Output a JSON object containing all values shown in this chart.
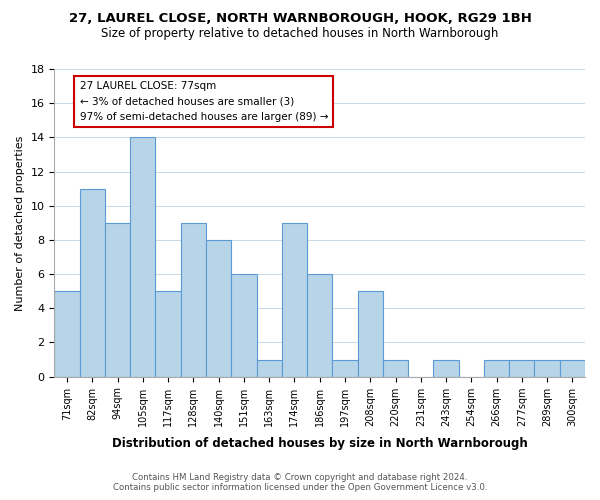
{
  "title1": "27, LAUREL CLOSE, NORTH WARNBOROUGH, HOOK, RG29 1BH",
  "title2": "Size of property relative to detached houses in North Warnborough",
  "xlabel": "Distribution of detached houses by size in North Warnborough",
  "ylabel": "Number of detached properties",
  "bin_labels": [
    "71sqm",
    "82sqm",
    "94sqm",
    "105sqm",
    "117sqm",
    "128sqm",
    "140sqm",
    "151sqm",
    "163sqm",
    "174sqm",
    "186sqm",
    "197sqm",
    "208sqm",
    "220sqm",
    "231sqm",
    "243sqm",
    "254sqm",
    "266sqm",
    "277sqm",
    "289sqm",
    "300sqm"
  ],
  "bar_values": [
    5,
    11,
    9,
    14,
    5,
    9,
    8,
    6,
    1,
    9,
    6,
    1,
    5,
    1,
    0,
    1,
    0,
    1,
    1,
    1,
    1
  ],
  "bar_color": "#b8d4e8",
  "bar_edge_color": "#5b9bd5",
  "annotation_title": "27 LAUREL CLOSE: 77sqm",
  "annotation_line1": "← 3% of detached houses are smaller (3)",
  "annotation_line2": "97% of semi-detached houses are larger (89) →",
  "annotation_box_edge": "#cc0000",
  "ylim": [
    0,
    18
  ],
  "yticks": [
    0,
    2,
    4,
    6,
    8,
    10,
    12,
    14,
    16,
    18
  ],
  "footer1": "Contains HM Land Registry data © Crown copyright and database right 2024.",
  "footer2": "Contains public sector information licensed under the Open Government Licence v3.0."
}
